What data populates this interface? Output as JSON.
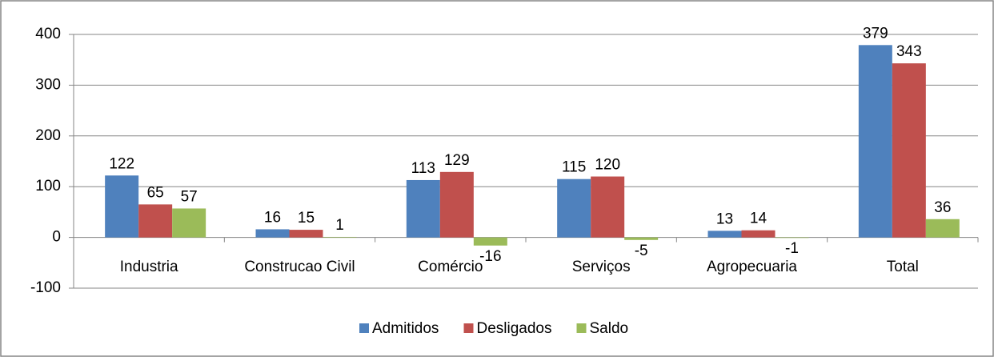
{
  "chart_data": {
    "type": "bar",
    "categories": [
      "Industria",
      "Construcao Civil",
      "Comércio",
      "Serviços",
      "Agropecuaria",
      "Total"
    ],
    "series": [
      {
        "name": "Admitidos",
        "color": "#4f81bd",
        "values": [
          122,
          16,
          113,
          115,
          13,
          379
        ]
      },
      {
        "name": "Desligados",
        "color": "#c0504d",
        "values": [
          65,
          15,
          129,
          120,
          14,
          343
        ]
      },
      {
        "name": "Saldo",
        "color": "#9bbb59",
        "values": [
          57,
          1,
          -16,
          -5,
          -1,
          36
        ]
      }
    ],
    "ylim": [
      -100,
      400
    ],
    "yticks": [
      -100,
      0,
      100,
      200,
      300,
      400
    ],
    "grid": true,
    "legend": "bottom"
  }
}
